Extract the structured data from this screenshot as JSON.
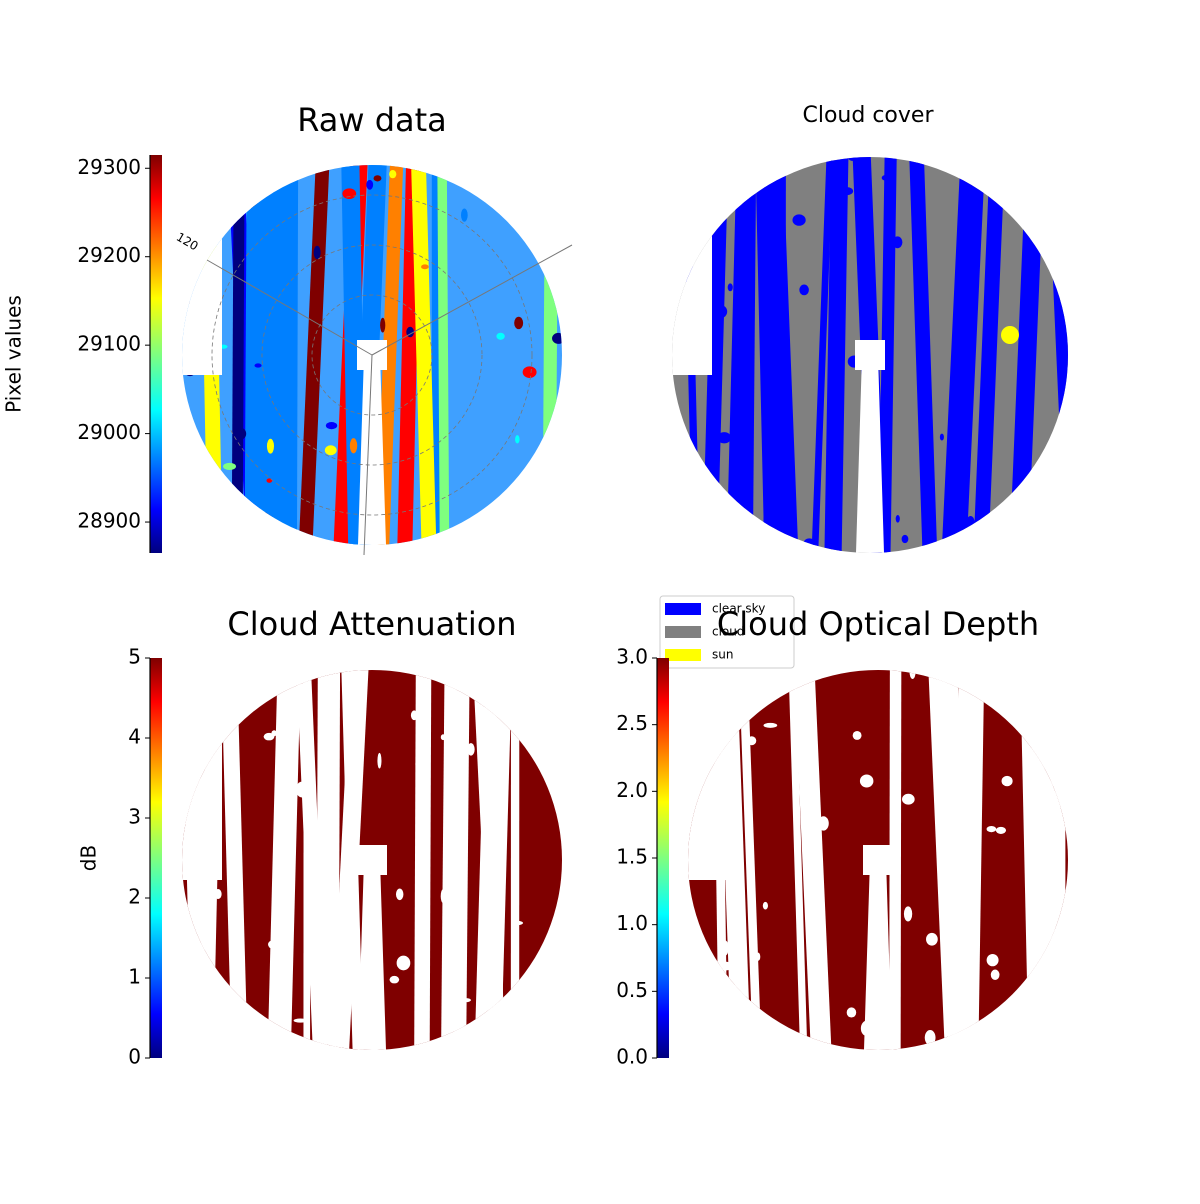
{
  "chart_data": [
    {
      "type": "image",
      "title": "Raw data",
      "colormap": "jet",
      "ylabel": "Pixel values",
      "ylim": [
        28865,
        29315
      ],
      "yticks": [
        28900,
        29000,
        29100,
        29200,
        29300
      ],
      "annotations": [
        "120"
      ]
    },
    {
      "type": "classes",
      "title": "Cloud cover",
      "classes": [
        {
          "name": "clear sky",
          "color": "#0000ff"
        },
        {
          "name": "cloud",
          "color": "#808080"
        },
        {
          "name": "sun",
          "color": "#ffff00"
        }
      ],
      "legend": "lower left"
    },
    {
      "type": "image",
      "title": "Cloud Attenuation",
      "colormap": "jet",
      "ylabel": "dB",
      "ylim": [
        0,
        5
      ],
      "yticks": [
        0,
        1,
        2,
        3,
        4,
        5
      ]
    },
    {
      "type": "image",
      "title": "Cloud Optical Depth",
      "colormap": "jet",
      "ylim": [
        0,
        3
      ],
      "yticks": [
        {
          "value": 0,
          "label": "0.0"
        },
        0.5,
        {
          "value": 1,
          "label": "1.0"
        },
        1.5,
        {
          "value": 2,
          "label": "2.0"
        },
        2.5,
        {
          "value": 3,
          "label": "3.0"
        }
      ]
    }
  ]
}
